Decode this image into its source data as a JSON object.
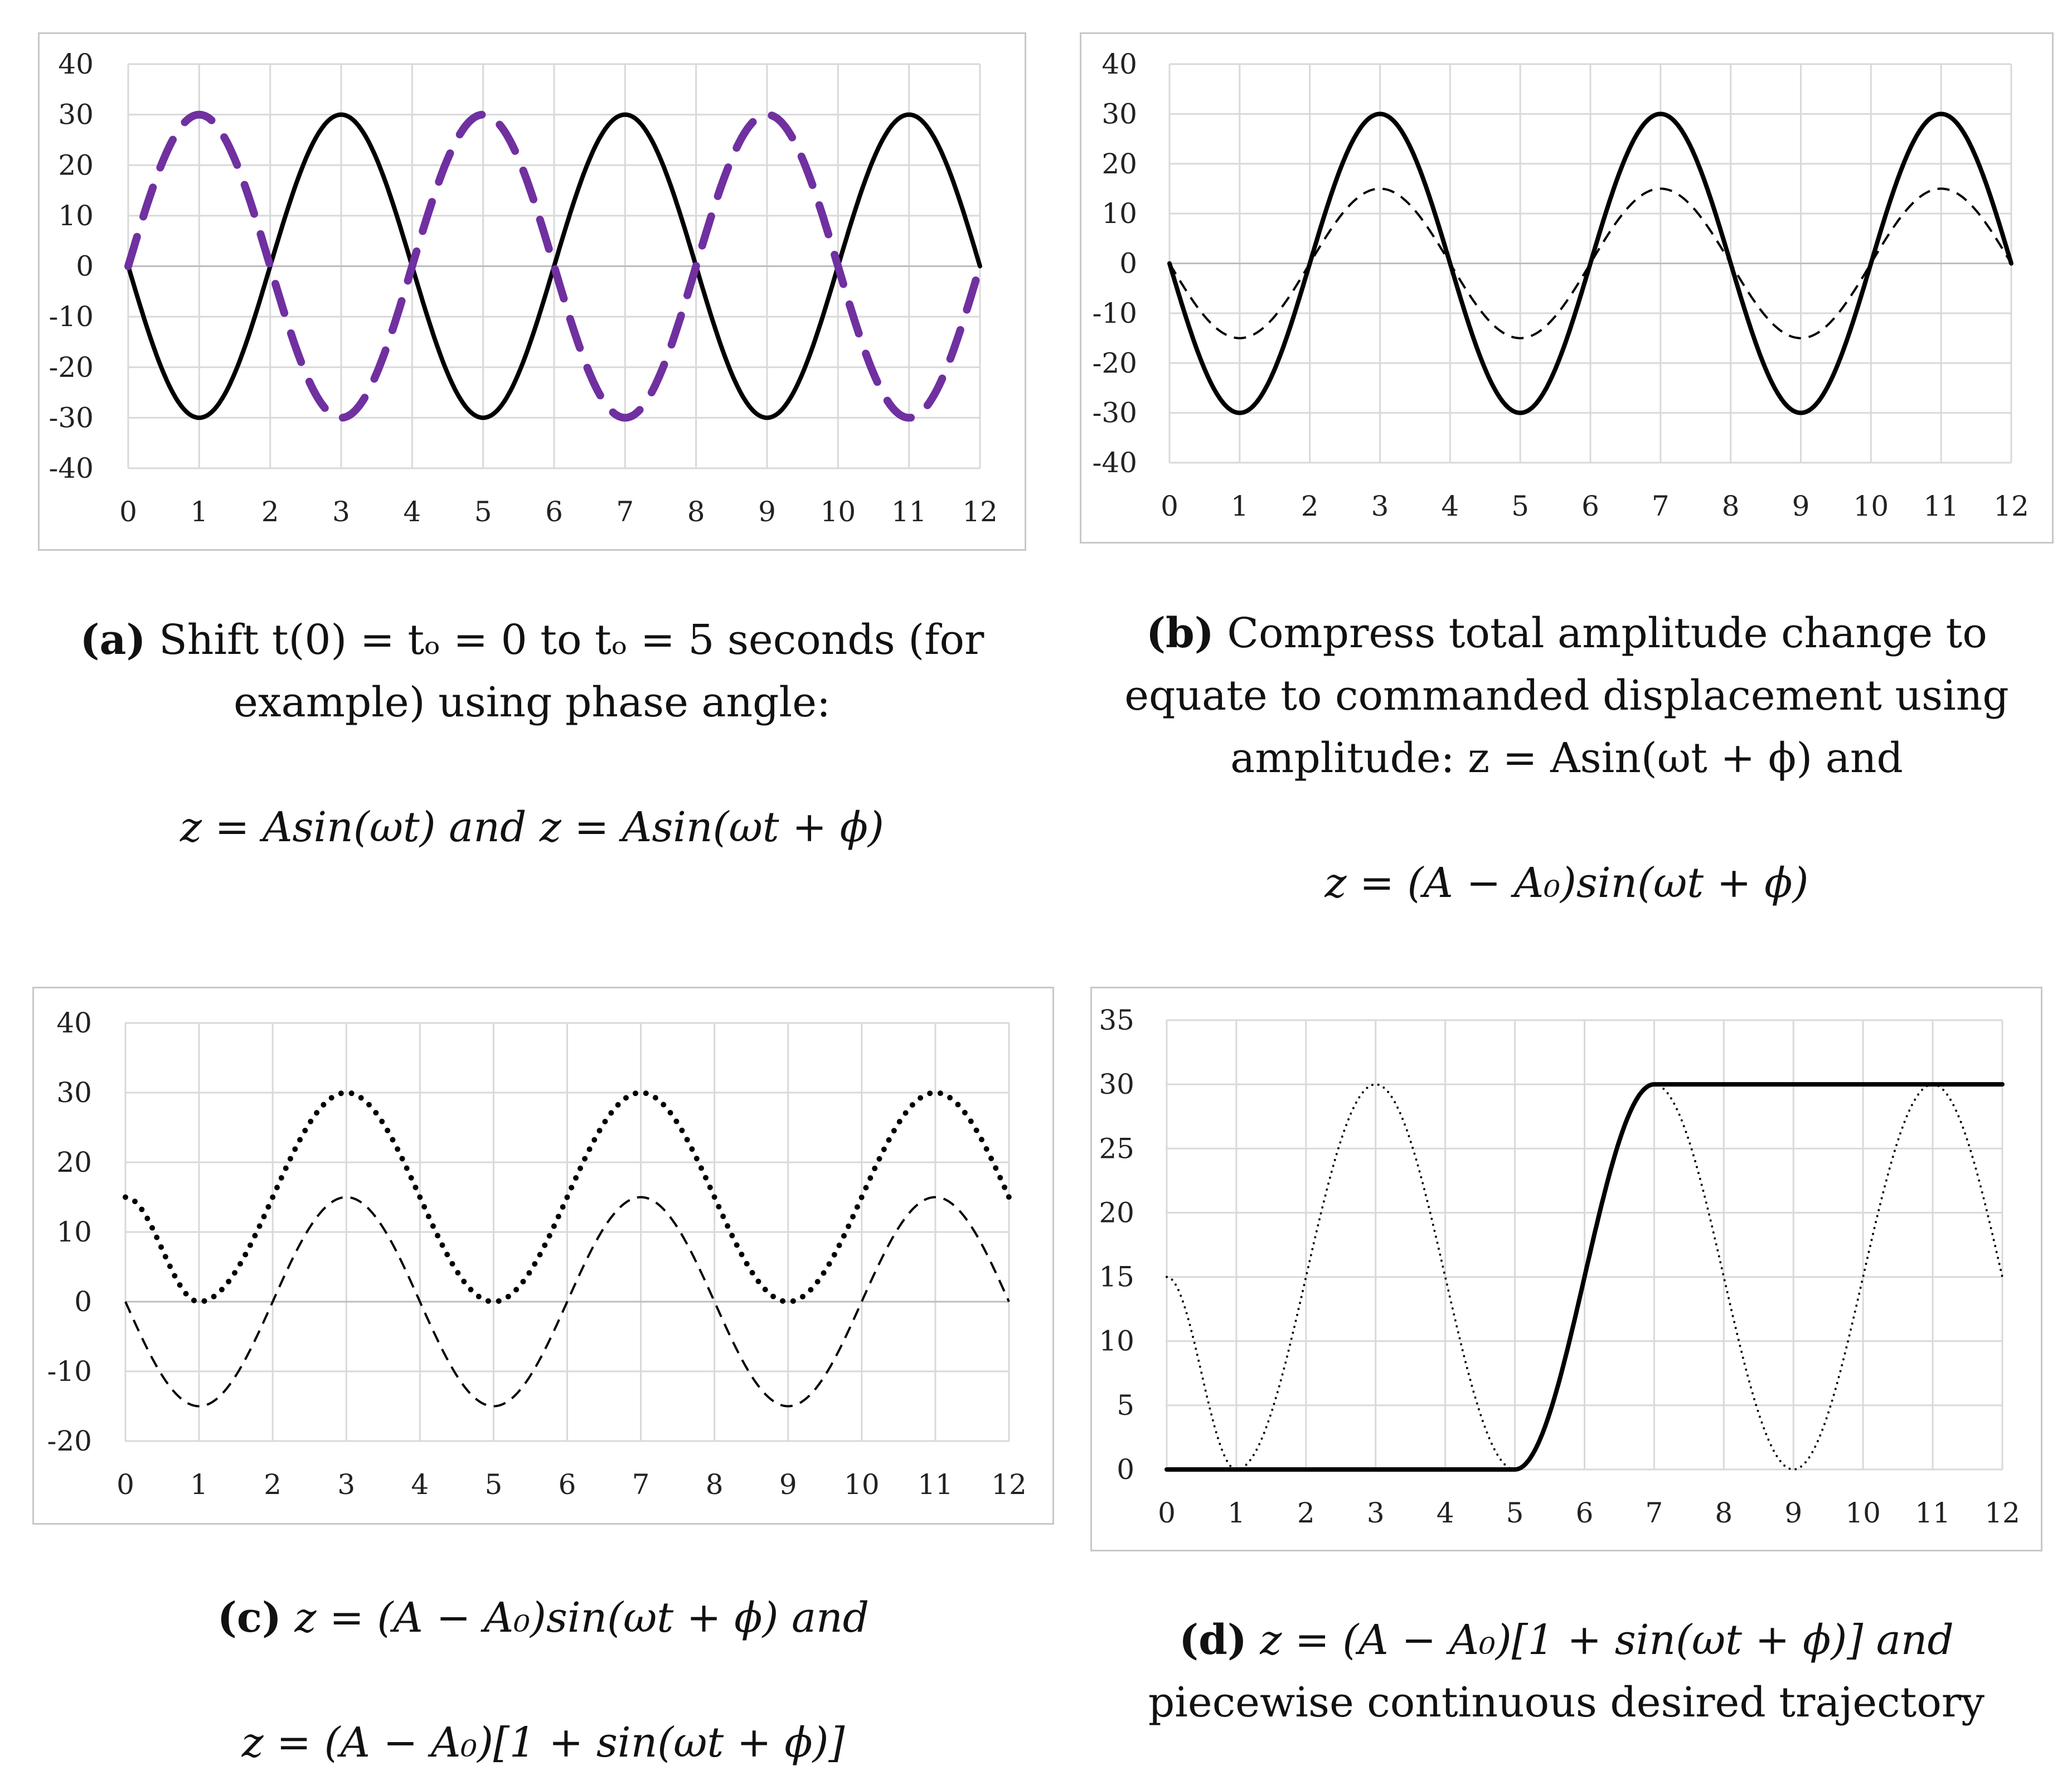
{
  "chart_data": [
    {
      "type": "line",
      "panel": "a",
      "x_ticks": [
        "0",
        "1",
        "2",
        "3",
        "4",
        "5",
        "6",
        "7",
        "8",
        "9",
        "10",
        "11",
        "12"
      ],
      "y_ticks": [
        "40",
        "30",
        "20",
        "10",
        "0",
        "-10",
        "-20",
        "-30",
        "-40"
      ],
      "xlim": [
        0,
        12
      ],
      "ylim": [
        -40,
        40
      ],
      "grid": true,
      "series": [
        {
          "style": "solid",
          "color": "#000000",
          "x": [
            0,
            1,
            2,
            3,
            4,
            5,
            6,
            7,
            8,
            9,
            10,
            11,
            12
          ],
          "y": [
            0,
            -30,
            0,
            30,
            0,
            -30,
            0,
            30,
            0,
            -30,
            0,
            30,
            0
          ]
        },
        {
          "style": "dashed",
          "color": "#7030a0",
          "x": [
            0,
            1,
            2,
            3,
            4,
            5,
            6,
            7,
            8,
            9,
            10,
            11,
            12
          ],
          "y": [
            0,
            30,
            0,
            -30,
            0,
            30,
            0,
            -30,
            0,
            30,
            0,
            -30,
            0
          ]
        }
      ]
    },
    {
      "type": "line",
      "panel": "b",
      "x_ticks": [
        "0",
        "1",
        "2",
        "3",
        "4",
        "5",
        "6",
        "7",
        "8",
        "9",
        "10",
        "11",
        "12"
      ],
      "y_ticks": [
        "40",
        "30",
        "20",
        "10",
        "0",
        "-10",
        "-20",
        "-30",
        "-40"
      ],
      "xlim": [
        0,
        12
      ],
      "ylim": [
        -40,
        40
      ],
      "grid": true,
      "series": [
        {
          "style": "solid",
          "color": "#000000",
          "x": [
            0,
            1,
            2,
            3,
            4,
            5,
            6,
            7,
            8,
            9,
            10,
            11,
            12
          ],
          "y": [
            0,
            -30,
            0,
            30,
            0,
            -30,
            0,
            30,
            0,
            -30,
            0,
            30,
            0
          ]
        },
        {
          "style": "dashed-thin",
          "color": "#000000",
          "x": [
            0,
            1,
            2,
            3,
            4,
            5,
            6,
            7,
            8,
            9,
            10,
            11,
            12
          ],
          "y": [
            0,
            -15,
            0,
            15,
            0,
            -15,
            0,
            15,
            0,
            -15,
            0,
            15,
            0
          ]
        }
      ]
    },
    {
      "type": "line",
      "panel": "c",
      "x_ticks": [
        "0",
        "1",
        "2",
        "3",
        "4",
        "5",
        "6",
        "7",
        "8",
        "9",
        "10",
        "11",
        "12"
      ],
      "y_ticks": [
        "40",
        "30",
        "20",
        "10",
        "0",
        "-10",
        "-20"
      ],
      "xlim": [
        0,
        12
      ],
      "ylim": [
        -20,
        40
      ],
      "grid": true,
      "series": [
        {
          "style": "dotted-bold",
          "color": "#000000",
          "x": [
            0,
            1,
            2,
            3,
            4,
            5,
            6,
            7,
            8,
            9,
            10,
            11,
            12
          ],
          "y": [
            15,
            0,
            15,
            30,
            15,
            0,
            15,
            30,
            15,
            0,
            15,
            30,
            15
          ]
        },
        {
          "style": "dashed-thin",
          "color": "#000000",
          "x": [
            0,
            1,
            2,
            3,
            4,
            5,
            6,
            7,
            8,
            9,
            10,
            11,
            12
          ],
          "y": [
            0,
            -15,
            0,
            15,
            0,
            -15,
            0,
            15,
            0,
            -15,
            0,
            15,
            0
          ]
        }
      ]
    },
    {
      "type": "line",
      "panel": "d",
      "x_ticks": [
        "0",
        "1",
        "2",
        "3",
        "4",
        "5",
        "6",
        "7",
        "8",
        "9",
        "10",
        "11",
        "12"
      ],
      "y_ticks": [
        "35",
        "30",
        "25",
        "20",
        "15",
        "10",
        "5",
        "0"
      ],
      "xlim": [
        0,
        12
      ],
      "ylim": [
        0,
        35
      ],
      "grid": true,
      "series": [
        {
          "style": "dotted-thin",
          "color": "#000000",
          "x": [
            0,
            1,
            2,
            3,
            4,
            5,
            6,
            7,
            8,
            9,
            10,
            11,
            12
          ],
          "y": [
            15,
            0,
            15,
            30,
            15,
            0,
            15,
            30,
            15,
            0,
            15,
            30,
            15
          ]
        },
        {
          "style": "solid",
          "color": "#000000",
          "x": [
            0,
            5,
            6,
            7,
            12
          ],
          "y": [
            0,
            0,
            15,
            30,
            30
          ]
        }
      ]
    }
  ],
  "captions": {
    "a": {
      "label": "(a)",
      "line1": "Shift t(0) = tₒ = 0 to tₒ = 5 seconds (for",
      "line2": "example) using phase angle:",
      "eq": "z = Asin(ωt) and z = Asin(ωt + ϕ)"
    },
    "b": {
      "label": "(b)",
      "line1": "Compress total amplitude change to",
      "line2": "equate to commanded displacement using",
      "line3": "amplitude: z = Asin(ωt + ϕ) and",
      "eq": "z = (A − A₀)sin(ωt + ϕ)"
    },
    "c": {
      "label": "(c)",
      "line1": "z = (A − A₀)sin(ωt + ϕ) and",
      "eq": "z = (A − A₀)[1 + sin(ωt + ϕ)]"
    },
    "d": {
      "label": "(d)",
      "line1": "z = (A − A₀)[1 + sin(ωt + ϕ)] and",
      "line2": "piecewise continuous desired trajectory"
    }
  }
}
